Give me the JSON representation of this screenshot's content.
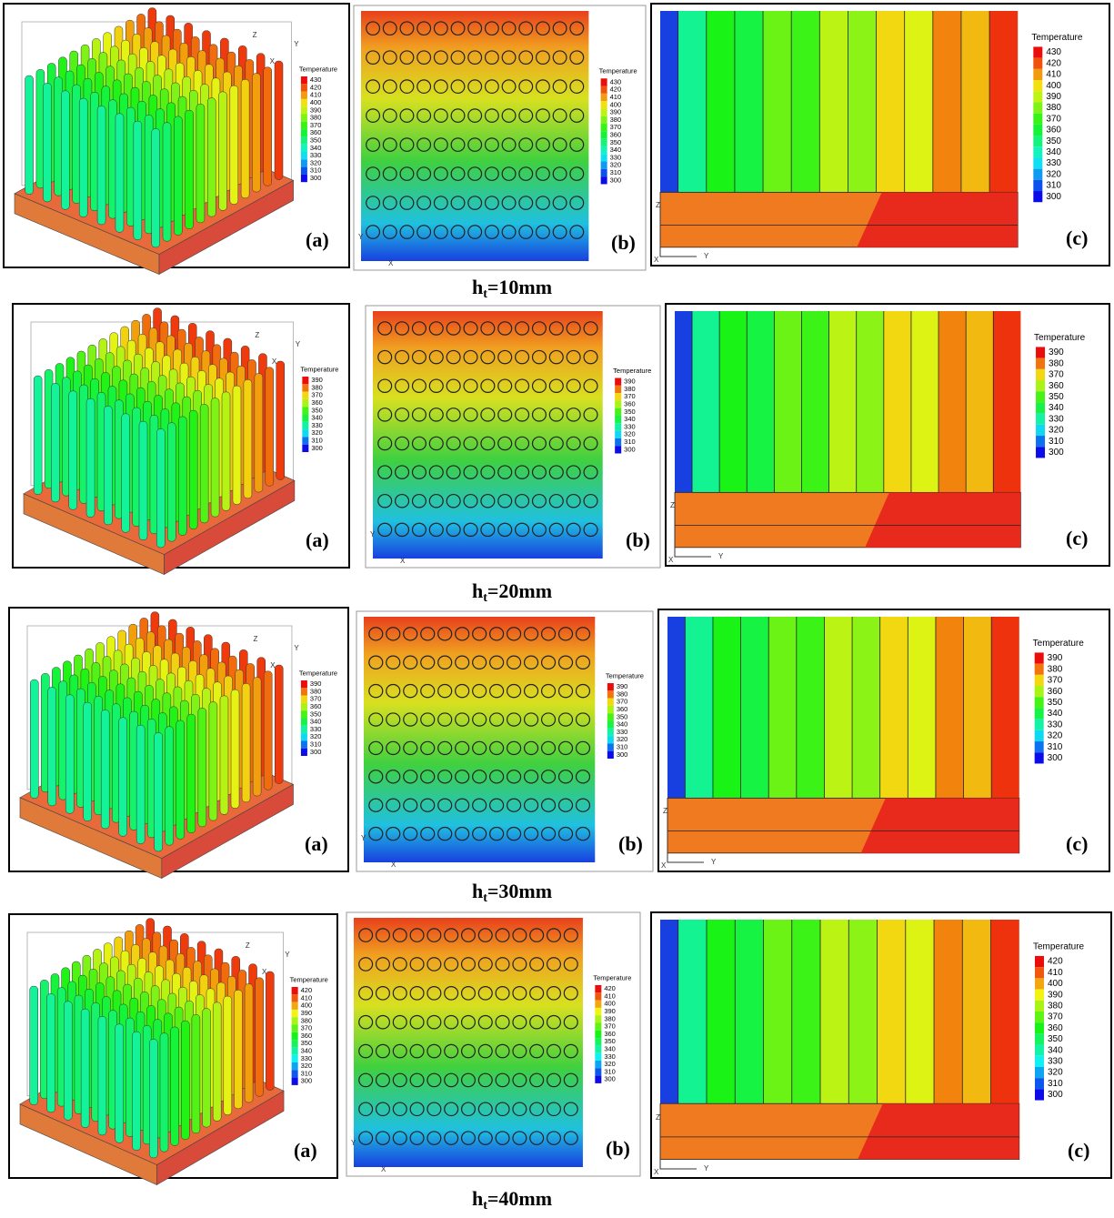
{
  "rows": [
    {
      "caption": {
        "main": "h",
        "sub": "t",
        "rest": "=10mm"
      },
      "panels": [
        {
          "label": "(a)",
          "axes": [
            "Z",
            "Y",
            "X"
          ],
          "legend": {
            "title": "Temperature",
            "values": [
              430,
              420,
              410,
              400,
              390,
              380,
              370,
              360,
              350,
              340,
              330,
              320,
              310,
              300
            ]
          }
        },
        {
          "label": "(b)",
          "axes": [
            "Y",
            "X"
          ],
          "legend": {
            "title": "Temperature",
            "values": [
              430,
              420,
              410,
              400,
              390,
              380,
              370,
              360,
              350,
              340,
              330,
              320,
              310,
              300
            ]
          }
        },
        {
          "label": "(c)",
          "axes": [
            "Z",
            "Y",
            "X"
          ],
          "legend": {
            "title": "Temperature",
            "values": [
              430,
              420,
              410,
              400,
              390,
              380,
              370,
              360,
              350,
              340,
              330,
              320,
              310,
              300
            ]
          }
        }
      ]
    },
    {
      "caption": {
        "main": "h",
        "sub": "t",
        "rest": "=20mm"
      },
      "panels": [
        {
          "label": "(a)",
          "axes": [
            "Z",
            "Y",
            "X"
          ],
          "legend": {
            "title": "Temperature",
            "values": [
              390,
              380,
              370,
              360,
              350,
              340,
              330,
              320,
              310,
              300
            ]
          }
        },
        {
          "label": "(b)",
          "axes": [
            "Y",
            "X"
          ],
          "legend": {
            "title": "Temperature",
            "values": [
              390,
              380,
              370,
              360,
              350,
              340,
              330,
              320,
              310,
              300
            ]
          }
        },
        {
          "label": "(c)",
          "axes": [
            "Z",
            "Y",
            "X"
          ],
          "legend": {
            "title": "Temperature",
            "values": [
              390,
              380,
              370,
              360,
              350,
              340,
              330,
              320,
              310,
              300
            ]
          }
        }
      ]
    },
    {
      "caption": {
        "main": "h",
        "sub": "t",
        "rest": "=30mm"
      },
      "panels": [
        {
          "label": "(a)",
          "axes": [
            "Z",
            "Y",
            "X"
          ],
          "legend": {
            "title": "Temperature",
            "values": [
              390,
              380,
              370,
              360,
              350,
              340,
              330,
              320,
              310,
              300
            ]
          }
        },
        {
          "label": "(b)",
          "axes": [
            "Y",
            "X"
          ],
          "legend": {
            "title": "Temperature",
            "values": [
              390,
              380,
              370,
              360,
              350,
              340,
              330,
              320,
              310,
              300
            ]
          }
        },
        {
          "label": "(c)",
          "axes": [
            "Z",
            "Y",
            "X"
          ],
          "legend": {
            "title": "Temperature",
            "values": [
              390,
              380,
              370,
              360,
              350,
              340,
              330,
              320,
              310,
              300
            ]
          }
        }
      ]
    },
    {
      "caption": {
        "main": "h",
        "sub": "t",
        "rest": "=40mm"
      },
      "panels": [
        {
          "label": "(a)",
          "axes": [
            "Z",
            "Y",
            "X"
          ],
          "legend": {
            "title": "Temperature",
            "values": [
              420,
              410,
              400,
              390,
              380,
              370,
              360,
              350,
              340,
              330,
              320,
              310,
              300
            ]
          }
        },
        {
          "label": "(b)",
          "axes": [
            "Y",
            "X"
          ],
          "legend": {
            "title": "Temperature",
            "values": [
              420,
              410,
              400,
              390,
              380,
              370,
              360,
              350,
              340,
              330,
              320,
              310,
              300
            ]
          }
        },
        {
          "label": "(c)",
          "axes": [
            "Z",
            "Y",
            "X"
          ],
          "legend": {
            "title": "Temperature",
            "values": [
              420,
              410,
              400,
              390,
              380,
              370,
              360,
              350,
              340,
              330,
              320,
              310,
              300
            ]
          }
        }
      ]
    }
  ]
}
